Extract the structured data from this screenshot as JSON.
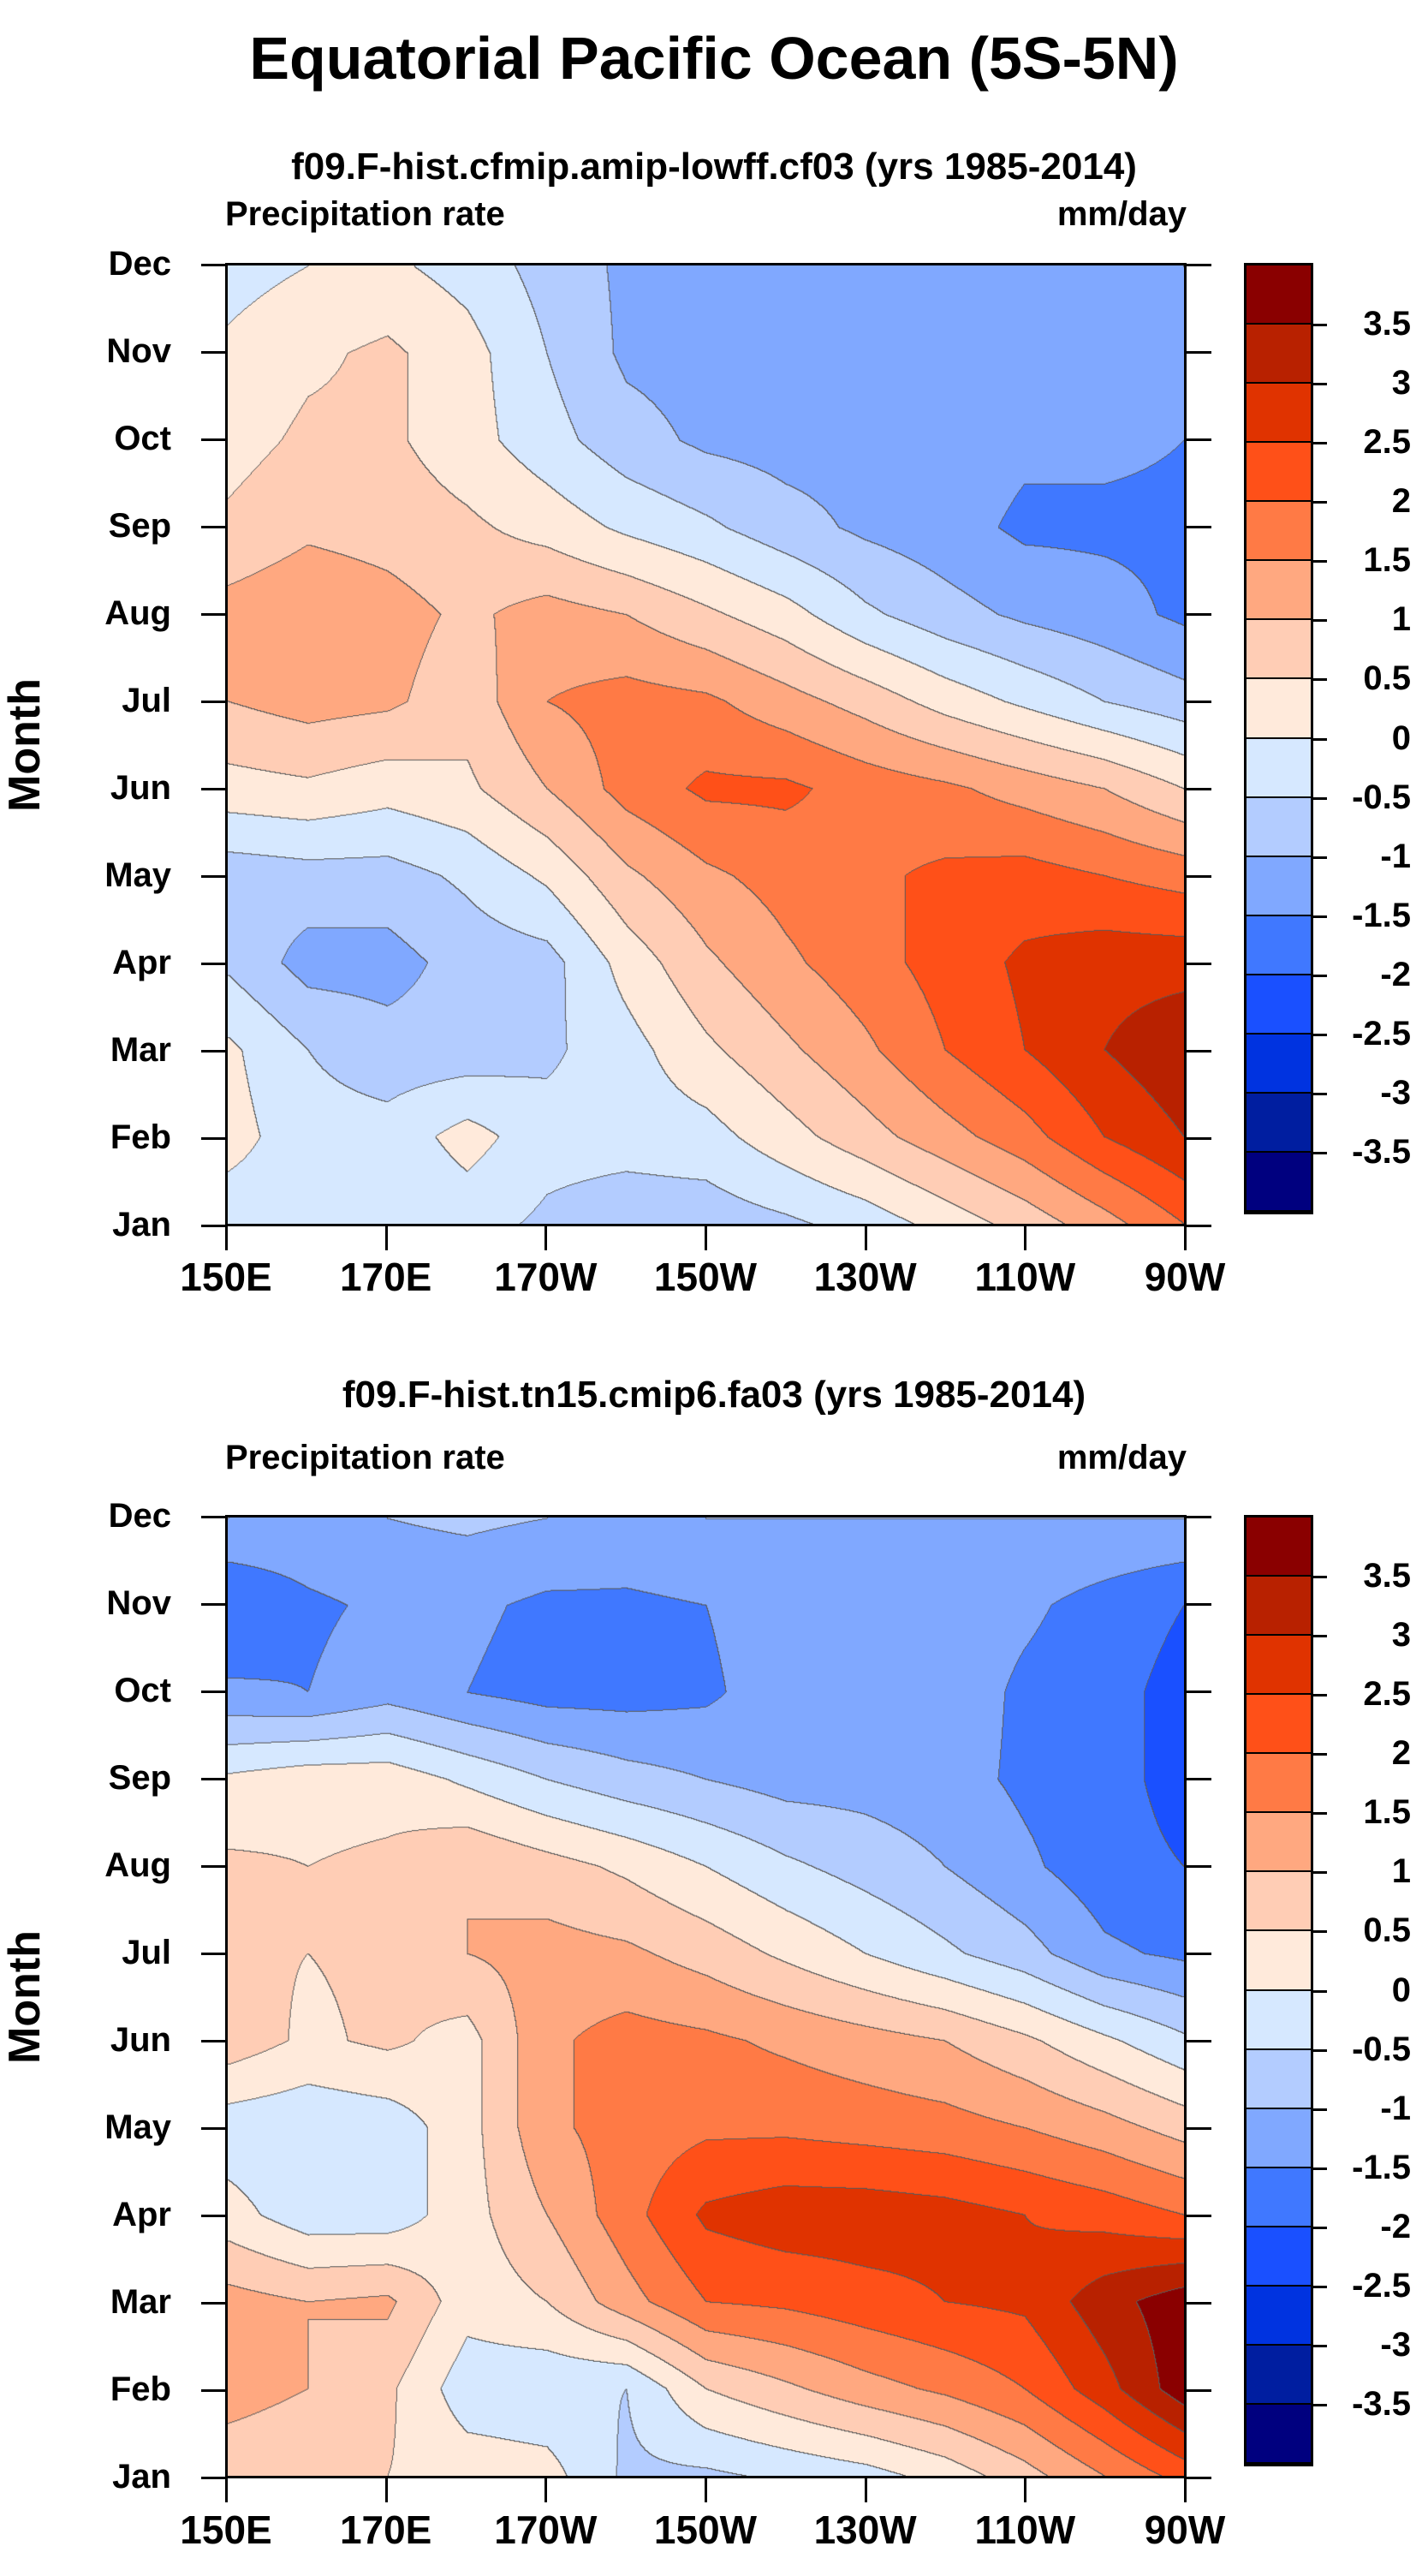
{
  "title": "Equatorial Pacific Ocean (5S-5N)",
  "colors": [
    "#00007f",
    "#001ea0",
    "#0033e0",
    "#1a50ff",
    "#4078ff",
    "#80a8ff",
    "#b3ccff",
    "#d6e8ff",
    "#ffeadb",
    "#ffcdb5",
    "#ffa880",
    "#ff7a45",
    "#ff5018",
    "#e03300",
    "#b82100",
    "#8a0000"
  ],
  "chart_data": [
    {
      "type": "heatmap",
      "title": "f09.F-hist.cfmip.amip-lowff.cf03 (yrs 1985-2014)",
      "left_label": "Precipitation rate",
      "right_label": "mm/day",
      "ylabel": "Month",
      "x_ticks": [
        "150E",
        "170E",
        "170W",
        "150W",
        "130W",
        "110W",
        "90W"
      ],
      "y_ticks": [
        "Jan",
        "Feb",
        "Mar",
        "Apr",
        "May",
        "Jun",
        "Jul",
        "Aug",
        "Sep",
        "Oct",
        "Nov",
        "Dec"
      ],
      "colorbar_labels": [
        "3.5",
        "3",
        "2.5",
        "2",
        "1.5",
        "1",
        "0.5",
        "0",
        "-0.5",
        "-1",
        "-1.5",
        "-2",
        "-2.5",
        "-3",
        "-3.5"
      ],
      "levels": [
        -3.5,
        -3,
        -2.5,
        -2,
        -1.5,
        -1,
        -0.5,
        0,
        0.5,
        1,
        1.5,
        2,
        2.5,
        3,
        3.5
      ],
      "lon_deg_east": [
        150,
        160,
        170,
        180,
        190,
        200,
        210,
        220,
        230,
        240,
        250,
        260,
        270
      ],
      "values": [
        [
          -0.3,
          -0.3,
          -0.5,
          -0.3,
          -0.6,
          -0.8,
          -0.8,
          -0.6,
          -0.3,
          0.2,
          0.7,
          1.3,
          2.0
        ],
        [
          0.2,
          -0.3,
          -0.3,
          0.2,
          -0.3,
          -0.3,
          -0.2,
          0.3,
          0.8,
          1.3,
          1.8,
          2.5,
          3.0
        ],
        [
          0.1,
          -0.5,
          -0.8,
          -0.8,
          -0.6,
          -0.2,
          0.4,
          0.9,
          1.4,
          2.0,
          2.5,
          3.0,
          3.4
        ],
        [
          -0.6,
          -1.2,
          -1.2,
          -0.8,
          -0.7,
          0.2,
          0.9,
          1.4,
          1.8,
          2.2,
          2.6,
          2.8,
          2.8
        ],
        [
          -0.8,
          -0.7,
          -0.7,
          -0.4,
          0.1,
          0.9,
          1.4,
          1.7,
          1.9,
          2.1,
          2.2,
          2.0,
          1.8
        ],
        [
          0.3,
          0.4,
          0.2,
          0.4,
          1.0,
          1.7,
          2.1,
          2.1,
          1.8,
          1.6,
          1.3,
          1.0,
          0.5
        ],
        [
          1.0,
          1.2,
          1.1,
          0.7,
          1.5,
          1.7,
          1.6,
          1.2,
          0.8,
          0.3,
          -0.1,
          -0.5,
          -0.8
        ],
        [
          1.2,
          1.4,
          1.2,
          0.9,
          1.2,
          1.0,
          0.6,
          0.2,
          -0.4,
          -0.8,
          -1.1,
          -1.3,
          -1.6
        ],
        [
          0.6,
          0.9,
          0.8,
          0.6,
          0.3,
          -0.1,
          -0.4,
          -0.8,
          -1.1,
          -1.3,
          -1.6,
          -1.6,
          -1.6
        ],
        [
          0.3,
          0.6,
          0.6,
          0.2,
          -0.3,
          -0.8,
          -1.1,
          -1.2,
          -1.2,
          -1.2,
          -1.4,
          -1.4,
          -1.5
        ],
        [
          0.1,
          0.4,
          0.6,
          0.2,
          -0.5,
          -1.1,
          -1.2,
          -1.2,
          -1.2,
          -1.2,
          -1.2,
          -1.2,
          -1.5
        ],
        [
          -0.2,
          0.0,
          0.1,
          -0.2,
          -0.7,
          -1.1,
          -1.2,
          -1.2,
          -1.2,
          -1.2,
          -1.2,
          -1.2,
          -1.0
        ]
      ]
    },
    {
      "type": "heatmap",
      "title": "f09.F-hist.tn15.cmip6.fa03 (yrs 1985-2014)",
      "left_label": "Precipitation rate",
      "right_label": "mm/day",
      "ylabel": "Month",
      "x_ticks": [
        "150E",
        "170E",
        "170W",
        "150W",
        "130W",
        "110W",
        "90W"
      ],
      "y_ticks": [
        "Jan",
        "Feb",
        "Mar",
        "Apr",
        "May",
        "Jun",
        "Jul",
        "Aug",
        "Sep",
        "Oct",
        "Nov",
        "Dec"
      ],
      "colorbar_labels": [
        "3.5",
        "3",
        "2.5",
        "2",
        "1.5",
        "1",
        "0.5",
        "0",
        "-0.5",
        "-1",
        "-1.5",
        "-2",
        "-2.5",
        "-3",
        "-3.5"
      ],
      "levels": [
        -3.5,
        -3,
        -2.5,
        -2,
        -1.5,
        -1,
        -0.5,
        0,
        0.5,
        1,
        1.5,
        2,
        2.5,
        3,
        3.5
      ],
      "lon_deg_east": [
        150,
        160,
        170,
        180,
        190,
        200,
        210,
        220,
        230,
        240,
        250,
        260,
        270
      ],
      "values": [
        [
          0.7,
          0.6,
          0.5,
          0.3,
          0.2,
          -0.6,
          -0.6,
          -0.4,
          -0.2,
          0.2,
          0.8,
          1.5,
          2.2
        ],
        [
          1.2,
          1.0,
          0.6,
          -0.3,
          -0.4,
          -0.5,
          0.5,
          0.9,
          1.3,
          1.6,
          2.0,
          2.8,
          3.8
        ],
        [
          1.2,
          1.0,
          1.1,
          0.2,
          0.5,
          1.3,
          2.0,
          2.1,
          2.3,
          2.5,
          2.6,
          3.3,
          3.8
        ],
        [
          0.2,
          -0.3,
          -0.3,
          0.3,
          1.0,
          1.8,
          2.6,
          2.8,
          2.8,
          2.7,
          2.5,
          2.3,
          2.0
        ],
        [
          -0.3,
          -0.4,
          -0.3,
          0.3,
          1.4,
          1.7,
          1.9,
          1.9,
          1.8,
          1.7,
          1.5,
          1.2,
          0.8
        ],
        [
          0.8,
          0.4,
          0.6,
          0.3,
          1.4,
          1.7,
          1.6,
          1.4,
          1.2,
          1.0,
          0.6,
          0.1,
          -0.4
        ],
        [
          0.6,
          0.5,
          0.6,
          1.0,
          1.2,
          1.1,
          0.8,
          0.4,
          0.0,
          -0.4,
          -0.8,
          -1.4,
          -1.6
        ],
        [
          0.6,
          0.5,
          0.6,
          1.0,
          0.7,
          0.4,
          0.0,
          -0.4,
          -0.7,
          -1.0,
          -1.4,
          -1.8,
          -2.0
        ],
        [
          0.1,
          0.3,
          0.3,
          -0.1,
          -0.5,
          -0.8,
          -1.0,
          -1.2,
          -1.2,
          -1.3,
          -1.6,
          -1.8,
          -2.2
        ],
        [
          -1.4,
          -1.5,
          -1.2,
          -1.5,
          -1.7,
          -1.7,
          -1.6,
          -1.2,
          -1.2,
          -1.2,
          -1.6,
          -1.8,
          -2.2
        ],
        [
          -2.0,
          -1.6,
          -1.4,
          -1.4,
          -1.6,
          -1.6,
          -1.5,
          -1.2,
          -1.2,
          -1.2,
          -1.4,
          -1.7,
          -2.0
        ],
        [
          -1.0,
          -1.1,
          -1.0,
          -0.9,
          -1.0,
          -1.1,
          -1.0,
          -1.0,
          -1.0,
          -1.0,
          -1.0,
          -1.0,
          -1.0
        ]
      ]
    }
  ]
}
